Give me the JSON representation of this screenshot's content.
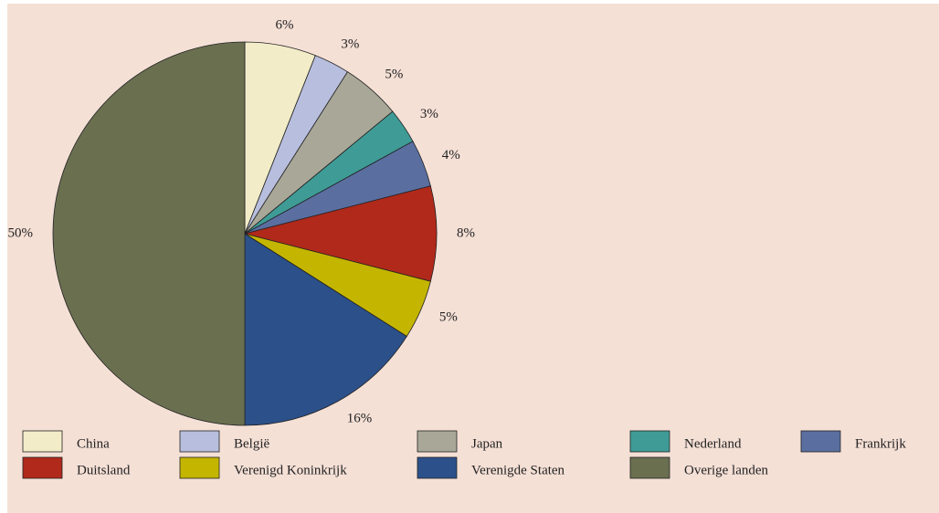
{
  "chart_data": {
    "type": "pie",
    "categories": [
      "China",
      "België",
      "Japan",
      "Nederland",
      "Frankrijk",
      "Duitsland",
      "Verenigd Koninkrijk",
      "Verenigde Staten",
      "Overige landen"
    ],
    "values": [
      6,
      3,
      5,
      3,
      4,
      8,
      5,
      16,
      50
    ],
    "value_labels": [
      "6%",
      "3%",
      "5%",
      "3%",
      "4%",
      "8%",
      "5%",
      "16%",
      "50%"
    ],
    "colors": [
      "#f2ecc8",
      "#b8bedd",
      "#a9a898",
      "#3f9b96",
      "#5a6ea0",
      "#b0291b",
      "#c4b500",
      "#2c5089",
      "#6a6f50"
    ],
    "legend": "bottom"
  }
}
